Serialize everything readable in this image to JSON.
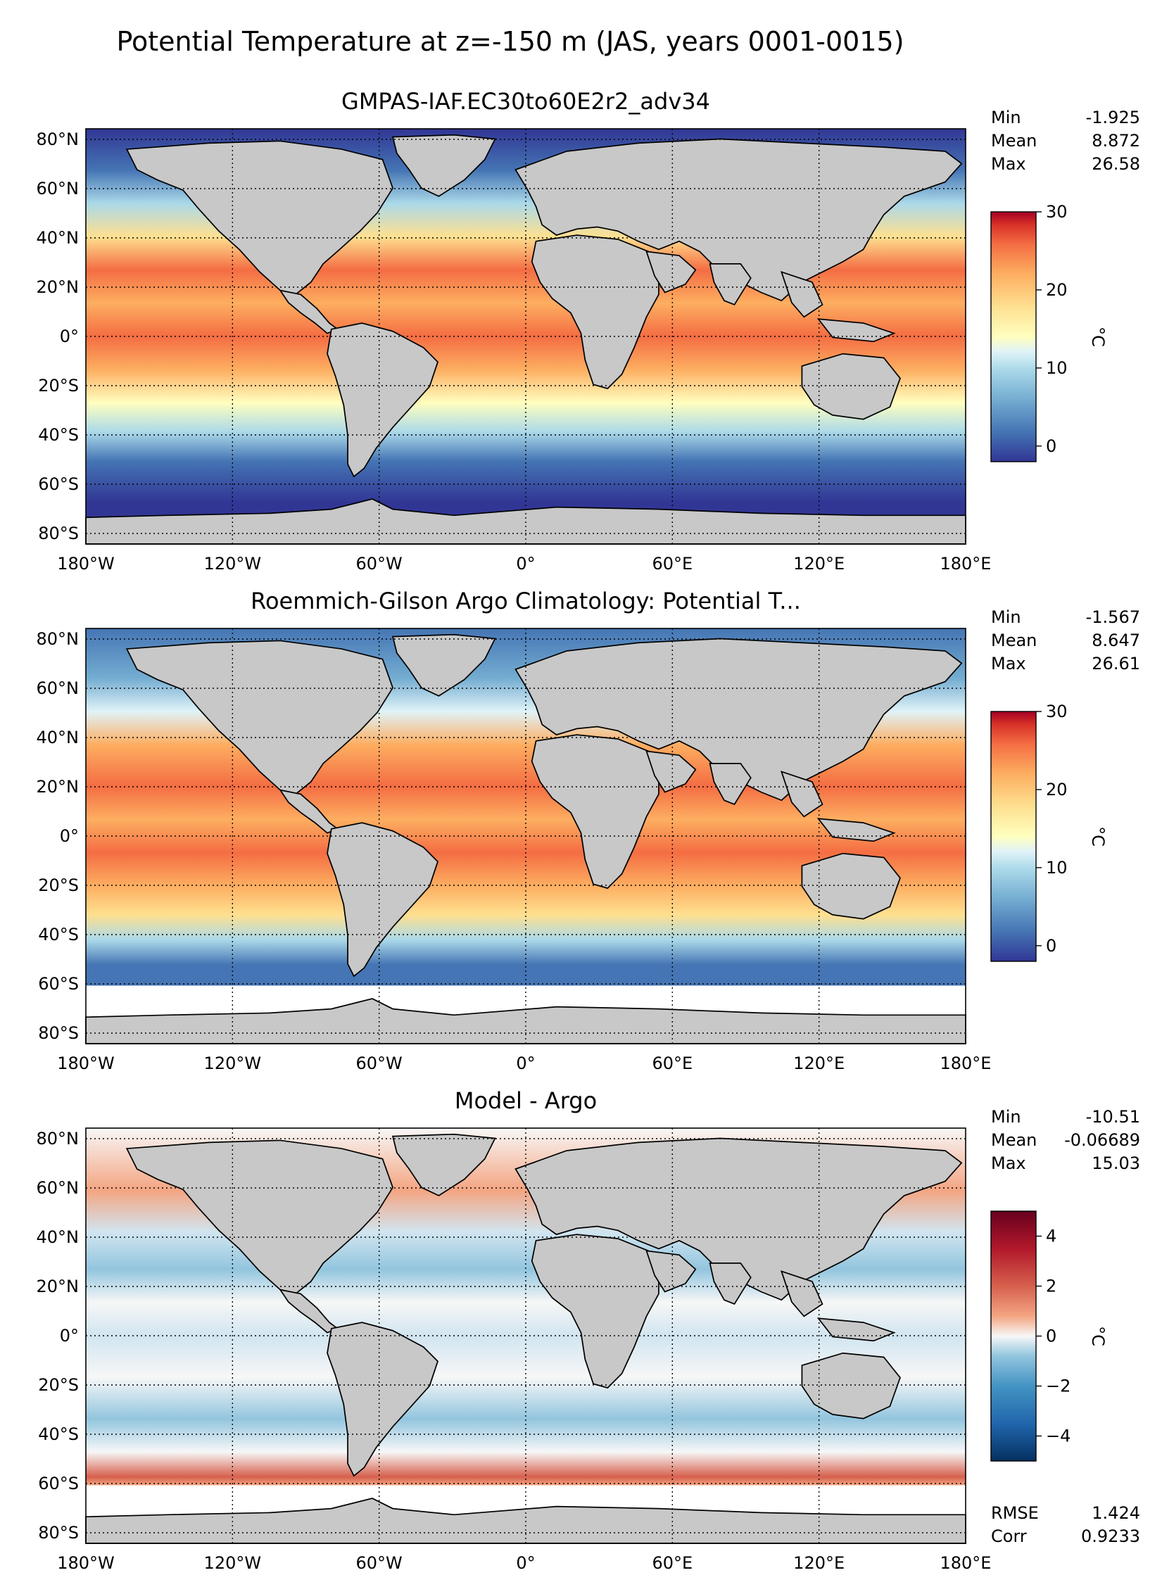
{
  "figure": {
    "suptitle": "Potential Temperature at z=-150 m (JAS, years 0001-0015)"
  },
  "axes": {
    "lon_ticks": [
      "180°W",
      "120°W",
      "60°W",
      "0°",
      "60°E",
      "120°E",
      "180°E"
    ],
    "lat_ticks": [
      "80°N",
      "60°N",
      "40°N",
      "20°N",
      "0°",
      "20°S",
      "40°S",
      "60°S",
      "80°S"
    ]
  },
  "panels": [
    {
      "id": "model",
      "title": "GMPAS-IAF.EC30to60E2r2_adv34",
      "stats": [
        {
          "label": "Min",
          "value": "-1.925"
        },
        {
          "label": "Mean",
          "value": "8.872"
        },
        {
          "label": "Max",
          "value": "26.58"
        }
      ],
      "colorbar": {
        "colormap": "RdYlBu_r",
        "range": [
          -2,
          30
        ],
        "ticks": [
          {
            "value": 30,
            "label": "30"
          },
          {
            "value": 20,
            "label": "20"
          },
          {
            "value": 10,
            "label": "10"
          },
          {
            "value": 0,
            "label": "0"
          }
        ],
        "unit": "°C"
      }
    },
    {
      "id": "obs",
      "title": "Roemmich-Gilson Argo Climatology: Potential T...",
      "stats": [
        {
          "label": "Min",
          "value": "-1.567"
        },
        {
          "label": "Mean",
          "value": "8.647"
        },
        {
          "label": "Max",
          "value": "26.61"
        }
      ],
      "colorbar": {
        "colormap": "RdYlBu_r",
        "range": [
          -2,
          30
        ],
        "ticks": [
          {
            "value": 30,
            "label": "30"
          },
          {
            "value": 20,
            "label": "20"
          },
          {
            "value": 10,
            "label": "10"
          },
          {
            "value": 0,
            "label": "0"
          }
        ],
        "unit": "°C"
      }
    },
    {
      "id": "diff",
      "title": "Model - Argo",
      "stats": [
        {
          "label": "Min",
          "value": "-10.51"
        },
        {
          "label": "Mean",
          "value": "-0.06689"
        },
        {
          "label": "Max",
          "value": "15.03"
        }
      ],
      "extra_stats": [
        {
          "label": "RMSE",
          "value": "1.424"
        },
        {
          "label": "Corr",
          "value": "0.9233"
        }
      ],
      "colorbar": {
        "colormap": "RdBu_r",
        "range": [
          -5,
          5
        ],
        "ticks": [
          {
            "value": 4,
            "label": "4"
          },
          {
            "value": 2,
            "label": "2"
          },
          {
            "value": 0,
            "label": "0"
          },
          {
            "value": -2,
            "label": "−2"
          },
          {
            "value": -4,
            "label": "−4"
          }
        ],
        "unit": "°C"
      }
    }
  ],
  "colors": {
    "land": "#c8c8c8",
    "coast": "#000000",
    "missing": "#ffffff"
  }
}
